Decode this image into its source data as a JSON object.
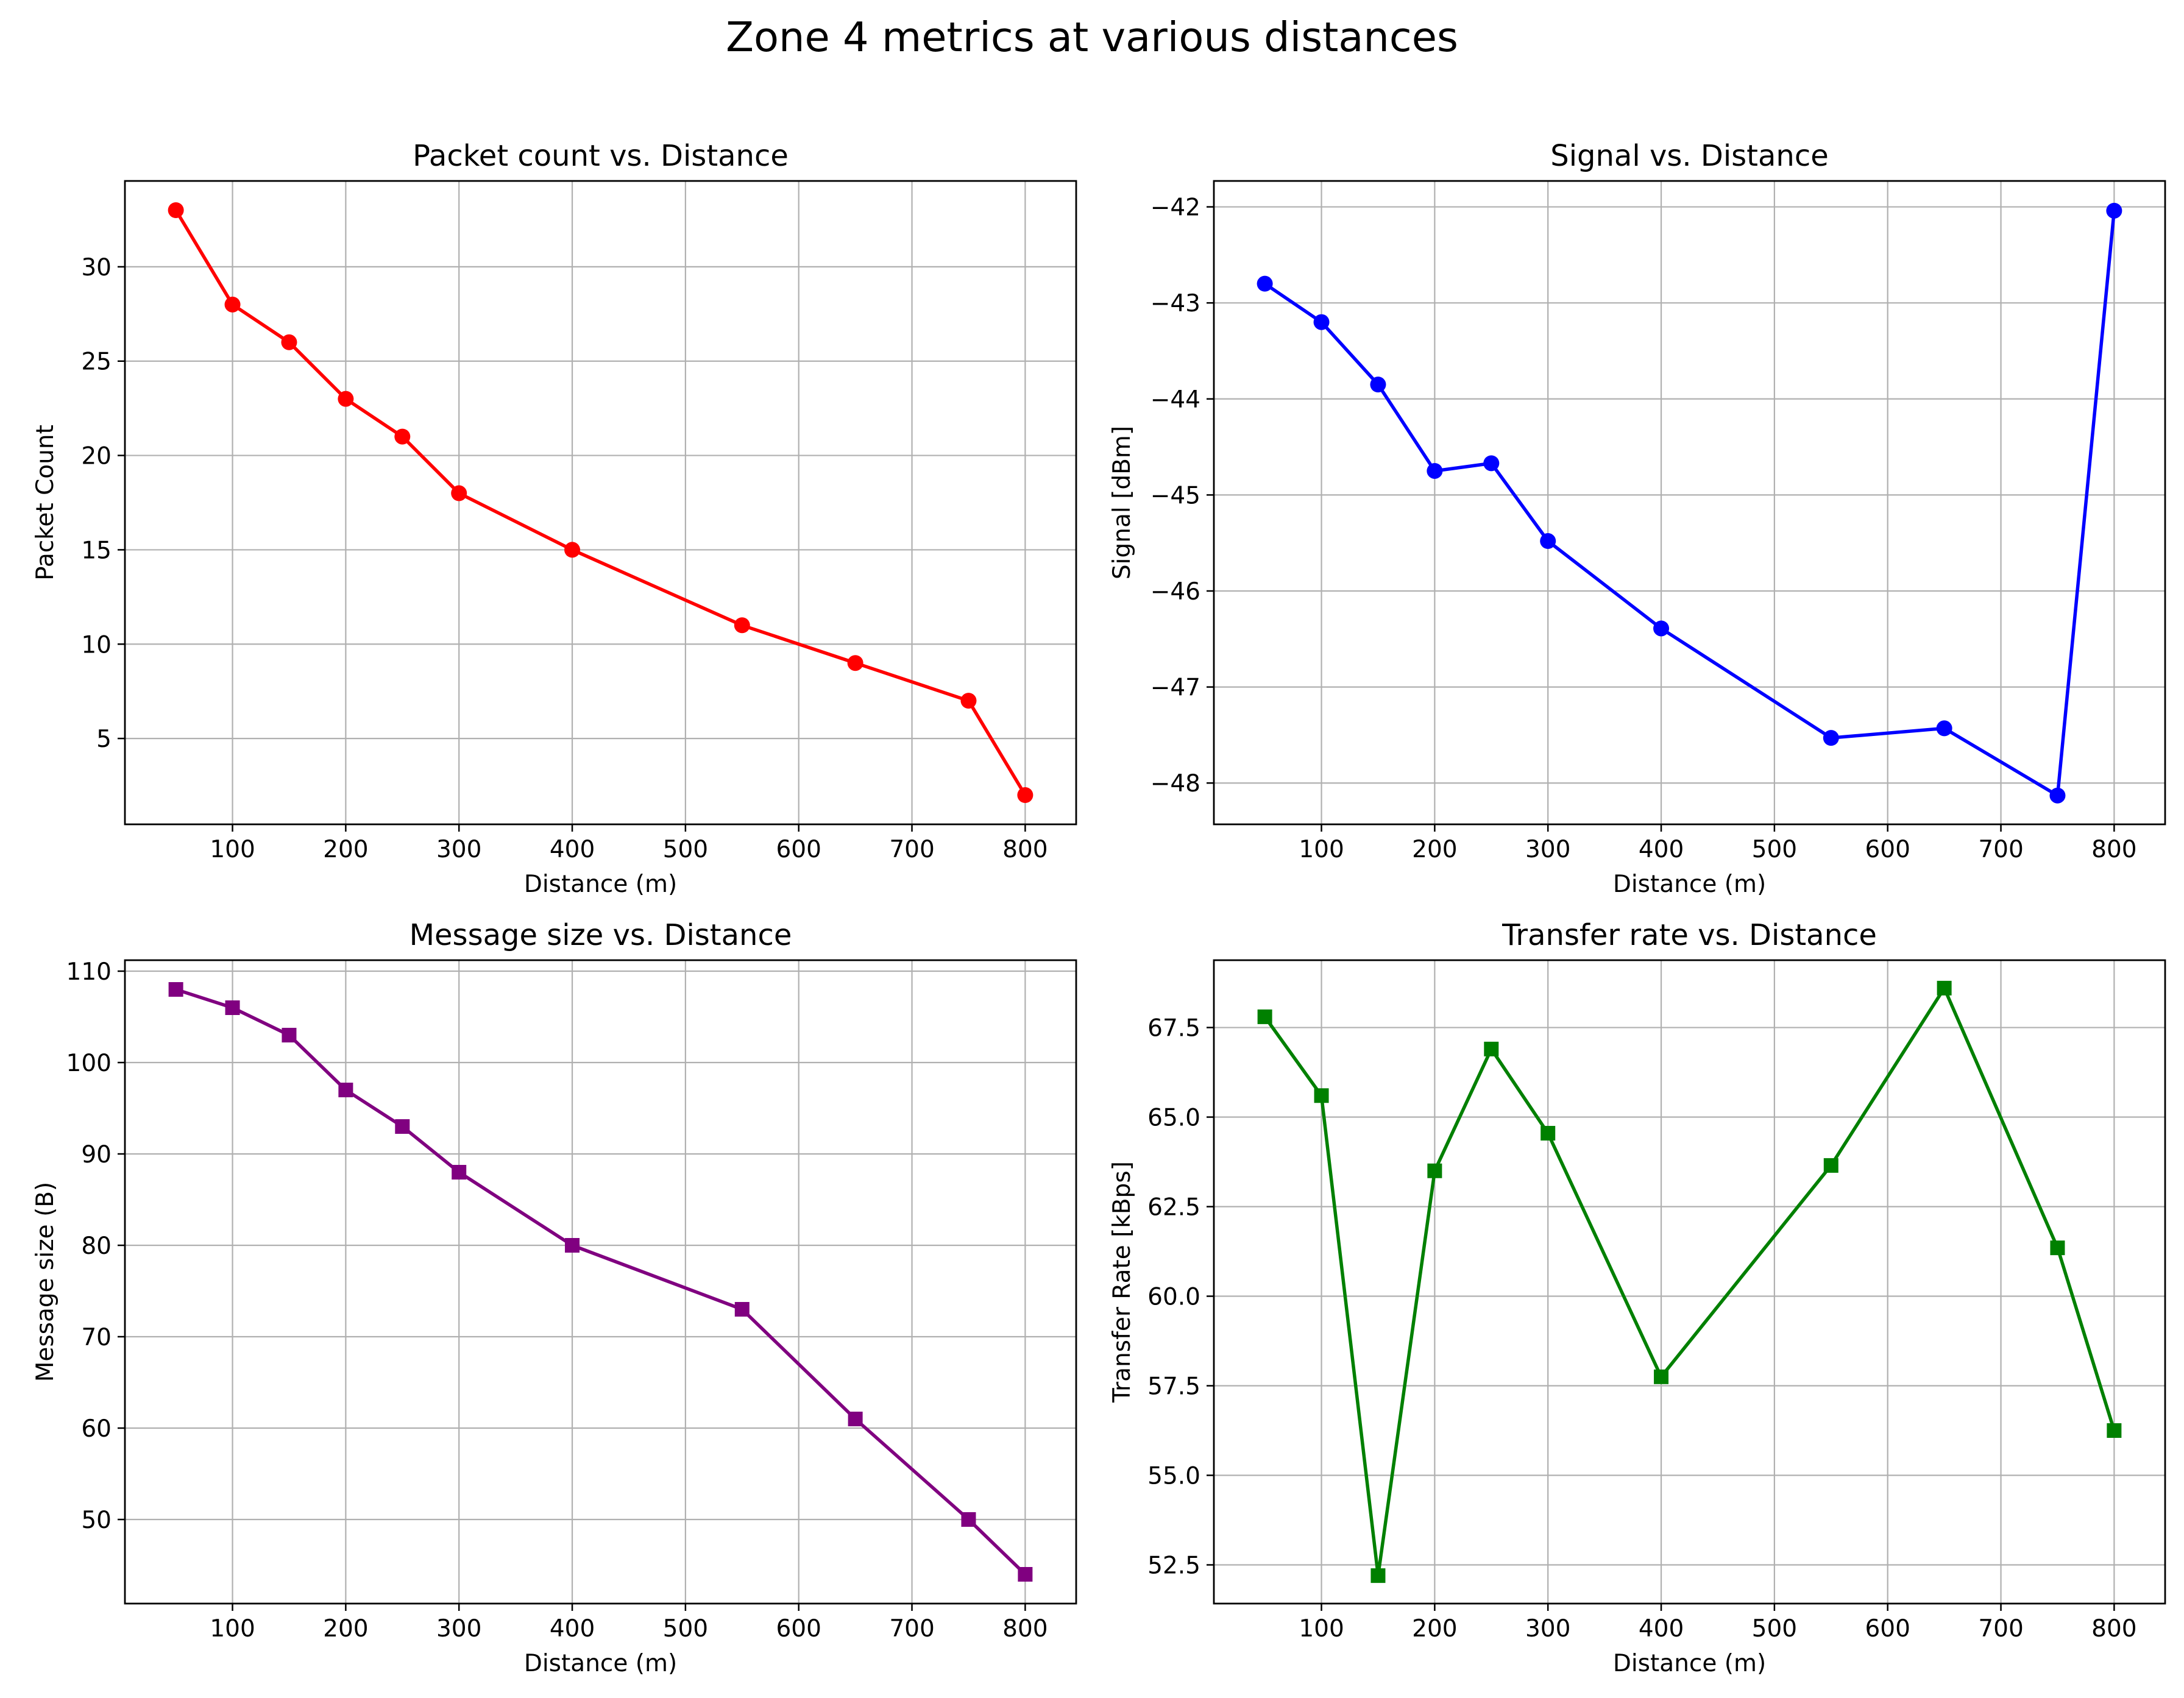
{
  "figure": {
    "title": "Zone 4 metrics at various distances"
  },
  "chart_data": [
    {
      "type": "line",
      "title": "Packet count vs. Distance",
      "xlabel": "Distance (m)",
      "ylabel": "Packet Count",
      "x": [
        50,
        100,
        150,
        200,
        250,
        300,
        400,
        550,
        650,
        750,
        800
      ],
      "series": [
        {
          "values": [
            33,
            28,
            26,
            23,
            21,
            18,
            15,
            11,
            9,
            7,
            2
          ],
          "color": "#ff0000",
          "marker": "circle"
        }
      ],
      "xlim": [
        5,
        845
      ],
      "ylim": [
        0.45,
        34.55
      ],
      "xticks": [
        100,
        200,
        300,
        400,
        500,
        600,
        700,
        800
      ],
      "yticks": [
        5,
        10,
        15,
        20,
        25,
        30
      ],
      "grid": true
    },
    {
      "type": "line",
      "title": "Signal vs. Distance",
      "xlabel": "Distance (m)",
      "ylabel": "Signal [dBm]",
      "x": [
        50,
        100,
        150,
        200,
        250,
        300,
        400,
        550,
        650,
        750,
        800
      ],
      "series": [
        {
          "values": [
            -42.8,
            -43.2,
            -43.85,
            -44.75,
            -44.67,
            -45.48,
            -46.39,
            -47.53,
            -47.43,
            -48.13,
            -42.04
          ],
          "color": "#0000ff",
          "marker": "circle"
        }
      ],
      "xlim": [
        5,
        845
      ],
      "ylim": [
        -48.43,
        -41.73
      ],
      "xticks": [
        100,
        200,
        300,
        400,
        500,
        600,
        700,
        800
      ],
      "yticks": [
        -48,
        -47,
        -46,
        -45,
        -44,
        -43,
        -42
      ],
      "grid": true
    },
    {
      "type": "line",
      "title": "Message size vs. Distance",
      "xlabel": "Distance (m)",
      "ylabel": "Message size (B)",
      "x": [
        50,
        100,
        150,
        200,
        250,
        300,
        400,
        550,
        650,
        750,
        800
      ],
      "series": [
        {
          "values": [
            108,
            106,
            103,
            97,
            93,
            88,
            80,
            73,
            61,
            50,
            44
          ],
          "color": "#800080",
          "marker": "square"
        }
      ],
      "xlim": [
        5,
        845
      ],
      "ylim": [
        40.8,
        111.2
      ],
      "xticks": [
        100,
        200,
        300,
        400,
        500,
        600,
        700,
        800
      ],
      "yticks": [
        50,
        60,
        70,
        80,
        90,
        100,
        110
      ],
      "grid": true
    },
    {
      "type": "line",
      "title": "Transfer rate vs. Distance",
      "xlabel": "Distance (m)",
      "ylabel": "Transfer Rate [kBps]",
      "x": [
        50,
        100,
        150,
        200,
        250,
        300,
        400,
        550,
        650,
        750,
        800
      ],
      "series": [
        {
          "values": [
            67.8,
            65.6,
            52.2,
            63.5,
            66.9,
            64.55,
            57.75,
            63.65,
            68.6,
            61.35,
            56.25
          ],
          "color": "#008000",
          "marker": "square"
        }
      ],
      "xlim": [
        5,
        845
      ],
      "ylim": [
        51.42,
        69.38
      ],
      "xticks": [
        100,
        200,
        300,
        400,
        500,
        600,
        700,
        800
      ],
      "yticks": [
        52.5,
        55.0,
        57.5,
        60.0,
        62.5,
        65.0,
        67.5
      ],
      "grid": true
    }
  ]
}
